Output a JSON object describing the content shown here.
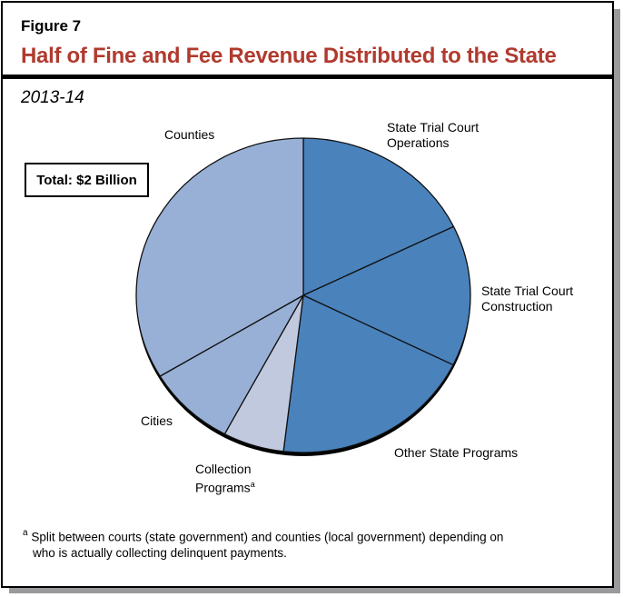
{
  "figure": {
    "label": "Figure 7",
    "title": "Half of Fine and Fee Revenue Distributed to the State",
    "subtitle": "2013-14",
    "total_box": "Total: $2 Billion",
    "footnote_marker": "a",
    "footnote_line1": "Split between courts (state government) and counties (local government) depending on",
    "footnote_line2": "who is actually collecting delinquent payments.",
    "title_color": "#b03a2e"
  },
  "labels": {
    "counties": "Counties",
    "trial_ops_1": "State Trial Court",
    "trial_ops_2": "Operations",
    "construction_1": "State Trial Court",
    "construction_2": "Construction",
    "other": "Other State Programs",
    "cities": "Cities",
    "collection_1": "Collection",
    "collection_2": "Programs",
    "collection_sup": "a"
  },
  "chart_data": {
    "type": "pie",
    "title": "Half of Fine and Fee Revenue Distributed to the State",
    "subtitle": "2013-14",
    "total": "$2 Billion",
    "unit": "percent of total (estimated from slice angles)",
    "categories": [
      "State Trial Court Operations",
      "State Trial Court Construction",
      "Other State Programs",
      "Collection Programs",
      "Cities",
      "Counties"
    ],
    "values": [
      17.8,
      14.5,
      19.6,
      5.9,
      8.6,
      33.6
    ],
    "colors": [
      "#4a82bc",
      "#4a82bc",
      "#4a82bc",
      "#c0c9de",
      "#98b0d6",
      "#98b0d6"
    ],
    "start_angle_deg": 0,
    "direction": "clockwise",
    "annotations": [
      "Total: $2 Billion",
      "Collection Programs footnote a: Split between courts (state government) and counties (local government) depending on who is actually collecting delinquent payments."
    ]
  }
}
